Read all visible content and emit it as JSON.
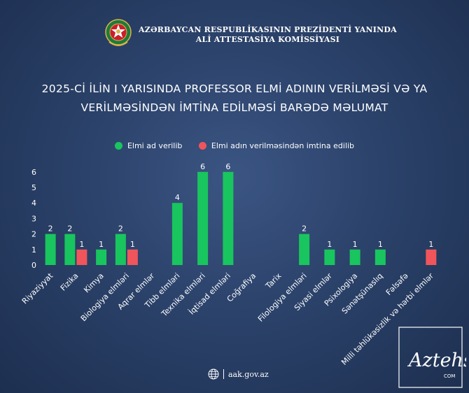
{
  "header": {
    "org_line1": "AZƏRBAYCAN RESPUBLİKASININ PREZİDENTİ YANINDA",
    "org_line2": "ALİ ATTESTASİYA KOMİSSİYASI"
  },
  "title": {
    "line1": "2025-Cİ İLİN I YARISINDA PROFESSOR ELMİ ADININ VERİLMƏSİ VƏ YA",
    "line2": "VERİLMƏSİNDƏN İMTİNA EDİLMƏSİ BARƏDƏ MƏLUMAT"
  },
  "colors": {
    "granted": "#19c55e",
    "refused": "#f0555b",
    "background": "#2b426a"
  },
  "chart_data": {
    "type": "bar",
    "categories": [
      "Riyaziyyat",
      "Fizika",
      "Kimya",
      "Biologiya elmləri",
      "Aqrar elmlər",
      "Tibb elmləri",
      "Texnika elmləri",
      "İqtisad elmləri",
      "Coğrafiya",
      "Tarix",
      "Filologiya elmləri",
      "Siyasi elmlər",
      "Psixologiya",
      "Sənətşünaslıq",
      "Fəlsəfə",
      "Milli təhlükəsizlik və hərbi elmlər"
    ],
    "series": [
      {
        "name": "Elmi ad verilib",
        "color": "#19c55e",
        "values": [
          2,
          2,
          1,
          2,
          0,
          4,
          6,
          6,
          0,
          0,
          2,
          1,
          1,
          1,
          0,
          0
        ]
      },
      {
        "name": "Elmi adın verilməsindən imtina edilib",
        "color": "#f0555b",
        "values": [
          0,
          1,
          0,
          1,
          0,
          0,
          0,
          0,
          0,
          0,
          0,
          0,
          0,
          0,
          0,
          1
        ]
      }
    ],
    "y_ticks": [
      "0",
      "1",
      "2",
      "3",
      "4",
      "5",
      "6"
    ],
    "ylim": [
      0,
      6
    ],
    "grid": false,
    "legend": "top-center",
    "xlabel": "",
    "ylabel": ""
  },
  "footer": {
    "website": "aak.gov.az"
  },
  "watermark": {
    "text": "Aztehsil",
    "subtext": "COM"
  }
}
